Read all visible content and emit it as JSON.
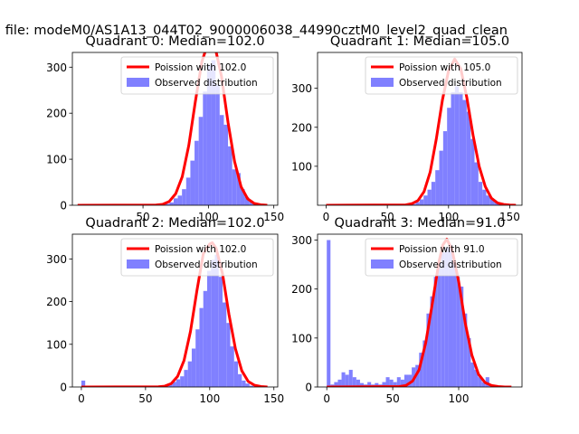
{
  "figure": {
    "suptitle": "n file: modeM0/AS1A13_044T02_9000006038_44990cztM0_level2_quad_clean"
  },
  "colors": {
    "observed": "#8080ff",
    "poisson": "#ff0000"
  },
  "chart_data": [
    {
      "type": "bar+line",
      "title": "Quadrant 0: Median=102.0",
      "legend_placement": "top-right",
      "legend": {
        "line": "Poission with 102.0",
        "bars": "Observed distribution"
      },
      "xlim": [
        -4,
        153
      ],
      "ylim": [
        0,
        332
      ],
      "xticks": [
        50,
        100,
        150
      ],
      "yticks": [
        0,
        100,
        200,
        300
      ],
      "bars": {
        "name": "Observed distribution",
        "bin_width": 3.2,
        "bins": [
          [
            67,
            3
          ],
          [
            70.2,
            6
          ],
          [
            73.4,
            15
          ],
          [
            76.6,
            21
          ],
          [
            79.8,
            35
          ],
          [
            83,
            60
          ],
          [
            86.2,
            97
          ],
          [
            89.4,
            140
          ],
          [
            92.6,
            192
          ],
          [
            95.8,
            247
          ],
          [
            99,
            305
          ],
          [
            102.2,
            315
          ],
          [
            105.4,
            262
          ],
          [
            108.6,
            196
          ],
          [
            111.8,
            175
          ],
          [
            115,
            128
          ],
          [
            118.2,
            78
          ],
          [
            121.4,
            70
          ],
          [
            124.6,
            35
          ],
          [
            127.8,
            18
          ],
          [
            131,
            10
          ],
          [
            134.2,
            5
          ],
          [
            137.4,
            3
          ],
          [
            140.6,
            1
          ]
        ]
      },
      "poisson": {
        "name": "Poission with 102.0",
        "x": [
          0,
          60,
          65,
          70,
          75,
          80,
          85,
          90,
          95,
          100,
          102,
          105,
          110,
          115,
          120,
          125,
          130,
          135,
          140,
          145
        ],
        "y": [
          0,
          0.5,
          2,
          8,
          25,
          62,
          130,
          225,
          312,
          355,
          358,
          345,
          280,
          180,
          95,
          40,
          14,
          4,
          1,
          0
        ]
      }
    },
    {
      "type": "bar+line",
      "title": "Quadrant 1: Median=105.0",
      "legend_placement": "top-right",
      "legend": {
        "line": "Poission with 105.0",
        "bars": "Observed distribution"
      },
      "xlim": [
        -7,
        160
      ],
      "ylim": [
        0,
        392
      ],
      "xticks": [
        0,
        50,
        100,
        150
      ],
      "yticks": [
        100,
        200,
        300
      ],
      "bars": {
        "name": "Observed distribution",
        "bin_width": 3.2,
        "bins": [
          [
            70,
            3
          ],
          [
            73.2,
            8
          ],
          [
            76.4,
            15
          ],
          [
            79.6,
            25
          ],
          [
            82.8,
            40
          ],
          [
            86,
            60
          ],
          [
            89.2,
            90
          ],
          [
            92.4,
            140
          ],
          [
            95.6,
            190
          ],
          [
            98.8,
            250
          ],
          [
            102,
            290
          ],
          [
            105.2,
            305
          ],
          [
            108.4,
            290
          ],
          [
            111.6,
            270
          ],
          [
            114.8,
            240
          ],
          [
            118,
            170
          ],
          [
            121.2,
            110
          ],
          [
            124.4,
            60
          ],
          [
            127.6,
            40
          ],
          [
            130.8,
            25
          ],
          [
            134,
            15
          ],
          [
            137.2,
            8
          ],
          [
            140.4,
            5
          ],
          [
            143.6,
            2
          ]
        ]
      },
      "poisson": {
        "name": "Poission with 105.0",
        "x": [
          0,
          65,
          70,
          75,
          80,
          85,
          90,
          95,
          100,
          105,
          110,
          115,
          120,
          125,
          130,
          135,
          140,
          145,
          150,
          155
        ],
        "y": [
          0,
          1,
          4,
          12,
          35,
          85,
          170,
          270,
          345,
          375,
          350,
          275,
          180,
          100,
          48,
          18,
          6,
          2,
          0.5,
          0
        ]
      }
    },
    {
      "type": "bar+line",
      "title": "Quadrant 2: Median=102.0",
      "legend_placement": "top-right",
      "legend": {
        "line": "Poission with 102.0",
        "bars": "Observed distribution"
      },
      "xlim": [
        -7,
        153
      ],
      "ylim": [
        0,
        358
      ],
      "xticks": [
        0,
        50,
        100,
        150
      ],
      "yticks": [
        0,
        100,
        200,
        300
      ],
      "bars": {
        "name": "Observed distribution",
        "bin_width": 3,
        "bins": [
          [
            0,
            15
          ],
          [
            65,
            3
          ],
          [
            68,
            6
          ],
          [
            71,
            12
          ],
          [
            74,
            18
          ],
          [
            77,
            25
          ],
          [
            80,
            40
          ],
          [
            83,
            60
          ],
          [
            86,
            90
          ],
          [
            89,
            135
          ],
          [
            92,
            185
          ],
          [
            95,
            225
          ],
          [
            98,
            272
          ],
          [
            101,
            298
          ],
          [
            104,
            310
          ],
          [
            107,
            258
          ],
          [
            110,
            198
          ],
          [
            113,
            150
          ],
          [
            116,
            95
          ],
          [
            119,
            60
          ],
          [
            122,
            30
          ],
          [
            125,
            15
          ],
          [
            128,
            8
          ],
          [
            131,
            3
          ],
          [
            134,
            1
          ]
        ]
      },
      "poisson": {
        "name": "Poission with 102.0",
        "x": [
          0,
          60,
          65,
          70,
          75,
          80,
          85,
          90,
          95,
          100,
          102,
          105,
          110,
          115,
          120,
          125,
          130,
          135,
          140,
          145
        ],
        "y": [
          0,
          0.5,
          2,
          8,
          25,
          62,
          130,
          225,
          312,
          335,
          338,
          325,
          265,
          170,
          90,
          38,
          13,
          4,
          1,
          0
        ]
      }
    },
    {
      "type": "bar+line",
      "title": "Quadrant 3: Median=91.0",
      "legend_placement": "top-right",
      "legend": {
        "line": "Poission with 91.0",
        "bars": "Observed distribution"
      },
      "xlim": [
        -7,
        148
      ],
      "ylim": [
        0,
        312
      ],
      "xticks": [
        0,
        50,
        100
      ],
      "yticks": [
        0,
        100,
        200,
        300
      ],
      "bars": {
        "name": "Observed distribution",
        "bin_width": 2.8,
        "bins": [
          [
            0,
            300
          ],
          [
            2.8,
            5
          ],
          [
            5.6,
            10
          ],
          [
            8.4,
            15
          ],
          [
            11.2,
            30
          ],
          [
            14,
            25
          ],
          [
            16.8,
            35
          ],
          [
            19.6,
            20
          ],
          [
            22.4,
            15
          ],
          [
            25.2,
            8
          ],
          [
            28,
            5
          ],
          [
            30.8,
            10
          ],
          [
            33.6,
            5
          ],
          [
            36.4,
            8
          ],
          [
            39.2,
            5
          ],
          [
            42,
            10
          ],
          [
            44.8,
            20
          ],
          [
            47.6,
            15
          ],
          [
            50.4,
            10
          ],
          [
            53.2,
            20
          ],
          [
            56,
            15
          ],
          [
            58.8,
            25
          ],
          [
            61.6,
            25
          ],
          [
            64.4,
            40
          ],
          [
            67.2,
            45
          ],
          [
            70,
            70
          ],
          [
            72.8,
            95
          ],
          [
            75.6,
            150
          ],
          [
            78.4,
            185
          ],
          [
            81.2,
            225
          ],
          [
            84,
            255
          ],
          [
            86.8,
            275
          ],
          [
            89.6,
            285
          ],
          [
            92.4,
            290
          ],
          [
            95.2,
            255
          ],
          [
            98,
            225
          ],
          [
            100.8,
            205
          ],
          [
            103.6,
            150
          ],
          [
            106.4,
            100
          ],
          [
            109.2,
            50
          ],
          [
            112,
            35
          ],
          [
            114.8,
            20
          ],
          [
            117.6,
            10
          ],
          [
            120.4,
            20
          ],
          [
            123.2,
            5
          ],
          [
            126,
            3
          ]
        ]
      },
      "poisson": {
        "name": "Poission with 91.0",
        "x": [
          0,
          55,
          60,
          65,
          70,
          75,
          80,
          85,
          88,
          91,
          95,
          100,
          105,
          110,
          115,
          120,
          125,
          130,
          135,
          140
        ],
        "y": [
          0,
          1,
          3,
          12,
          35,
          90,
          170,
          255,
          290,
          302,
          280,
          215,
          130,
          65,
          26,
          9,
          3,
          1,
          0,
          0
        ]
      }
    }
  ]
}
